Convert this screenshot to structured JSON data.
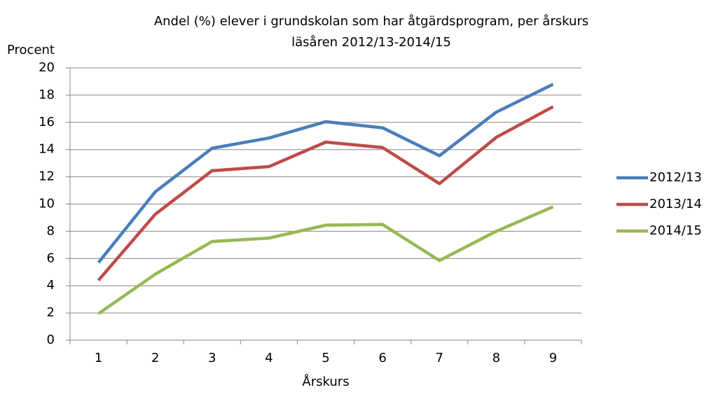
{
  "chart_data": {
    "type": "line",
    "title": [
      "Andel (%) elever i grundskolan som har åtgärdsprogram, per årskurs",
      "läsåren 2012/13-2014/15"
    ],
    "ylabel": "Procent",
    "xlabel": "Årskurs",
    "categories": [
      "1",
      "2",
      "3",
      "4",
      "5",
      "6",
      "7",
      "8",
      "9"
    ],
    "series": [
      {
        "name": "2012/13",
        "color": "#4a7ebb",
        "values": [
          5.7,
          10.9,
          14.1,
          14.85,
          16.05,
          15.6,
          13.55,
          16.75,
          18.8
        ]
      },
      {
        "name": "2013/14",
        "color": "#be4b48",
        "values": [
          4.4,
          9.25,
          12.45,
          12.75,
          14.55,
          14.15,
          11.5,
          14.9,
          17.15
        ]
      },
      {
        "name": "2014/15",
        "color": "#98b954",
        "values": [
          1.95,
          4.85,
          7.25,
          7.5,
          8.45,
          8.5,
          5.85,
          8.0,
          9.8
        ]
      }
    ],
    "ylim": [
      0,
      20
    ],
    "yticks": [
      0,
      2,
      4,
      6,
      8,
      10,
      12,
      14,
      16,
      18,
      20
    ],
    "grid": true,
    "legend": "right"
  }
}
